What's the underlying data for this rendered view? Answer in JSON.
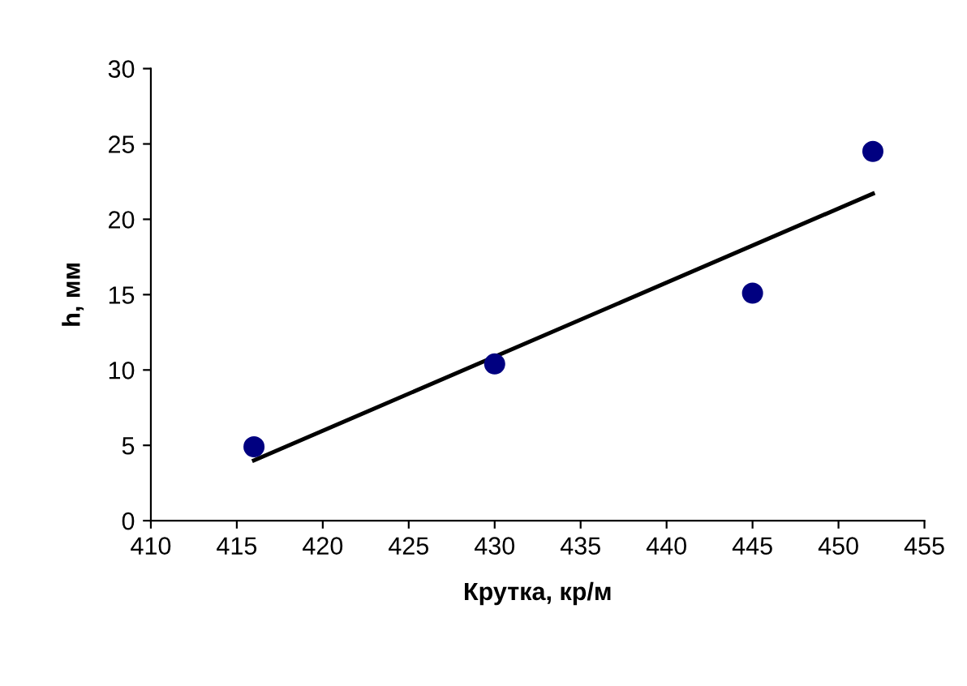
{
  "chart_data": {
    "type": "scatter",
    "xlabel": "Крутка, кр/м",
    "ylabel": "h, мм",
    "x": [
      416,
      430,
      445,
      452
    ],
    "series": [
      {
        "color": "#000080",
        "values": [
          4.9,
          10.4,
          15.1,
          24.5
        ],
        "marker": "circle"
      },
      {
        "type": "line",
        "color": "#000000",
        "x": [
          416,
          452
        ],
        "values": [
          4.0,
          21.7
        ],
        "line_style": "solid"
      }
    ],
    "xlim": [
      410,
      455
    ],
    "xticks": [
      410,
      415,
      420,
      425,
      430,
      435,
      440,
      445,
      450,
      455
    ],
    "ylim": [
      0,
      30
    ],
    "yticks": [
      0,
      5,
      10,
      15,
      20,
      25,
      30
    ],
    "grid": false,
    "legend": false
  }
}
